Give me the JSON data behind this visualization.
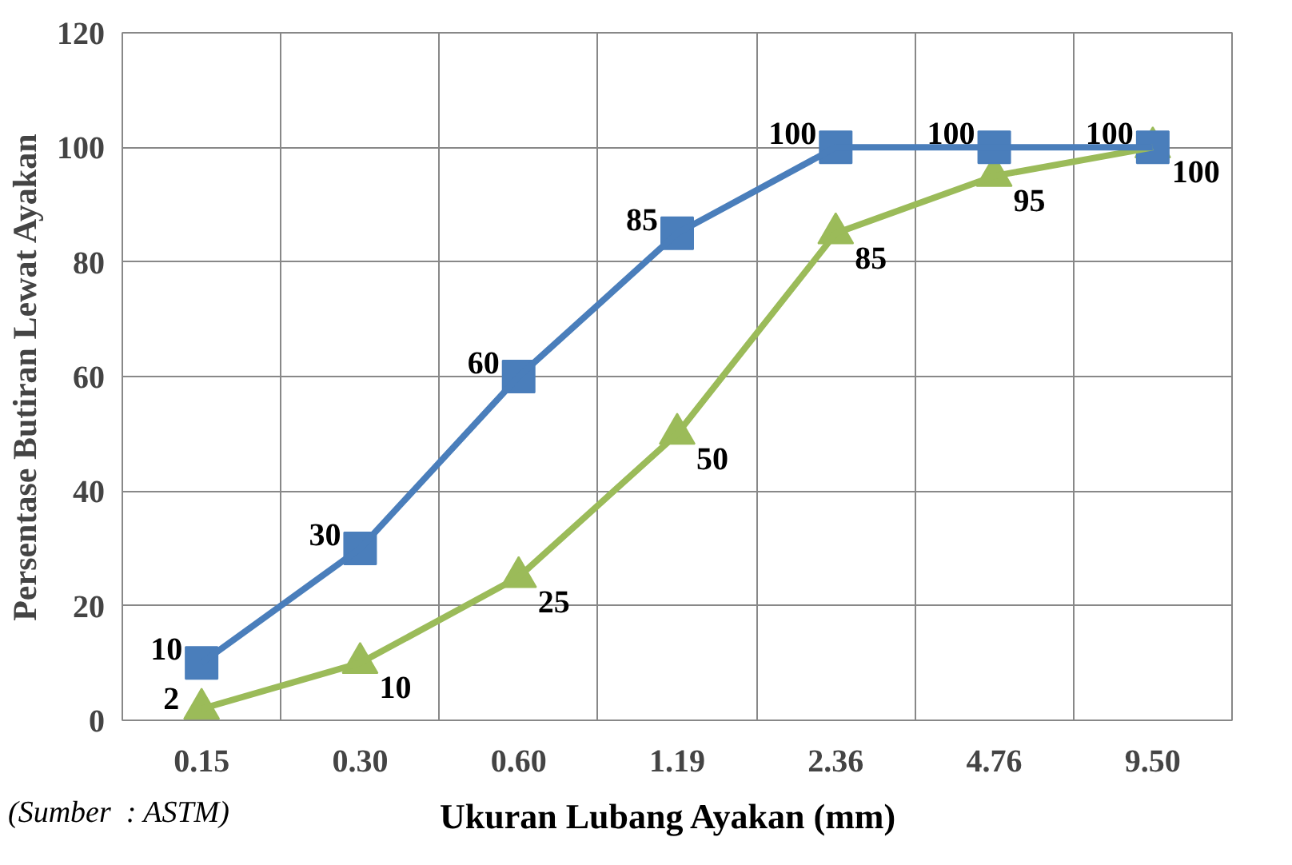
{
  "chart_data": {
    "type": "line",
    "categories": [
      "0.15",
      "0.30",
      "0.60",
      "1.19",
      "2.36",
      "4.76",
      "9.50"
    ],
    "series": [
      {
        "color": "#4a7ebb",
        "marker": "square",
        "values": [
          10,
          30,
          60,
          85,
          100,
          100,
          100
        ]
      },
      {
        "color": "#9bbb59",
        "marker": "triangle",
        "values": [
          2,
          10,
          25,
          50,
          85,
          95,
          100
        ]
      }
    ],
    "xlabel": "Ukuran Lubang Ayakan (mm)",
    "ylabel": "Persentase Butiran Lewat Ayakan",
    "ylim": [
      0,
      120
    ],
    "yticks": [
      0,
      20,
      40,
      60,
      80,
      100,
      120
    ],
    "grid": true,
    "data_labels": true,
    "annotations": [
      "(Sumber  : ASTM)"
    ]
  }
}
